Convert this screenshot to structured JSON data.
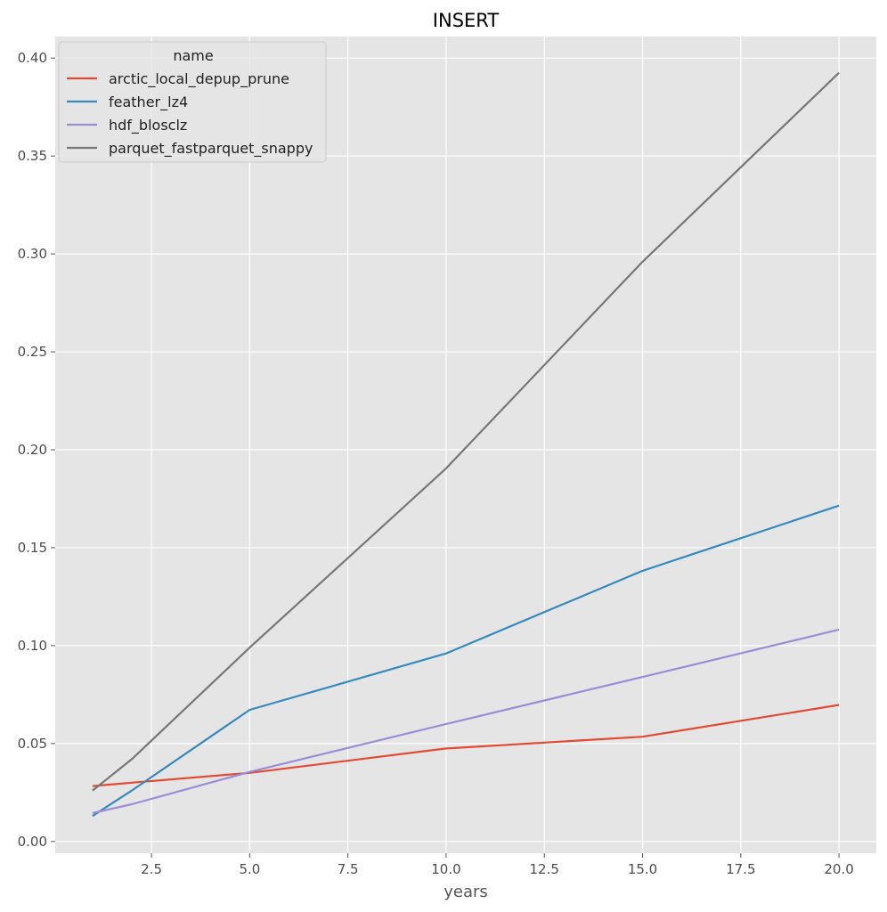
{
  "chart_data": {
    "type": "line",
    "title": "INSERT",
    "xlabel": "years",
    "ylabel": "",
    "xlim": [
      0.05,
      20.95
    ],
    "ylim": [
      -0.006,
      0.411
    ],
    "grid": true,
    "legend": {
      "title": "name",
      "placement": "top-left"
    },
    "x_ticks": [
      2.5,
      5.0,
      7.5,
      10.0,
      12.5,
      15.0,
      17.5,
      20.0
    ],
    "x_tick_labels": [
      "2.5",
      "5.0",
      "7.5",
      "10.0",
      "12.5",
      "15.0",
      "17.5",
      "20.0"
    ],
    "y_ticks": [
      0.0,
      0.05,
      0.1,
      0.15,
      0.2,
      0.25,
      0.3,
      0.35,
      0.4
    ],
    "y_tick_labels": [
      "0.00",
      "0.05",
      "0.10",
      "0.15",
      "0.20",
      "0.25",
      "0.30",
      "0.35",
      "0.40"
    ],
    "colors": {
      "background": "#e5e5e5",
      "grid": "#ffffff"
    },
    "series": [
      {
        "name": "arctic_local_depup_prune",
        "color": "#e24a33",
        "x": [
          1,
          2,
          5,
          10,
          15,
          20
        ],
        "y": [
          0.0283,
          0.03,
          0.035,
          0.0475,
          0.0535,
          0.0697
        ]
      },
      {
        "name": "feather_lz4",
        "color": "#348abd",
        "x": [
          1,
          2,
          5,
          10,
          15,
          20
        ],
        "y": [
          0.013,
          0.026,
          0.0672,
          0.096,
          0.1382,
          0.1715
        ]
      },
      {
        "name": "hdf_blosclz",
        "color": "#988ed5",
        "x": [
          1,
          2,
          5,
          10,
          15,
          20
        ],
        "y": [
          0.0145,
          0.019,
          0.0355,
          0.06,
          0.084,
          0.1082
        ]
      },
      {
        "name": "parquet_fastparquet_snappy",
        "color": "#777777",
        "x": [
          1,
          2,
          5,
          10,
          15,
          20
        ],
        "y": [
          0.026,
          0.042,
          0.099,
          0.1905,
          0.296,
          0.3925
        ]
      }
    ]
  }
}
